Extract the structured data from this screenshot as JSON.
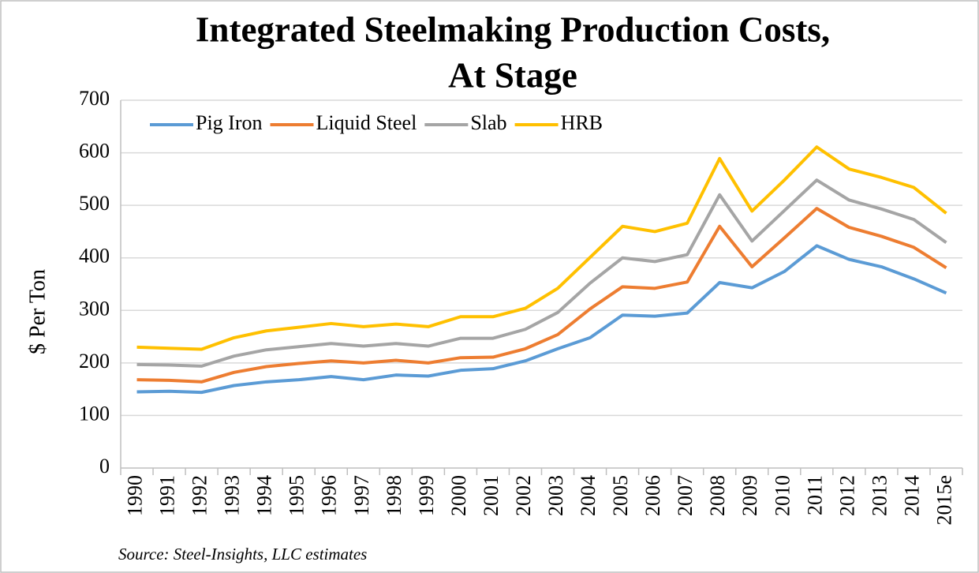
{
  "chart_data": {
    "type": "line",
    "title_lines": [
      "Integrated Steelmaking Production Costs,",
      "At Stage"
    ],
    "y_label": "$ Per Ton",
    "source": "Source: Steel-Insights, LLC estimates",
    "categories": [
      "1990",
      "1991",
      "1992",
      "1993",
      "1994",
      "1995",
      "1996",
      "1997",
      "1998",
      "1999",
      "2000",
      "2001",
      "2002",
      "2003",
      "2004",
      "2005",
      "2006",
      "2007",
      "2008",
      "2009",
      "2010",
      "2011",
      "2012",
      "2013",
      "2014",
      "2015e"
    ],
    "series": [
      {
        "name": "Pig Iron",
        "color": "#5b9bd5",
        "values": [
          145,
          146,
          144,
          157,
          164,
          168,
          174,
          168,
          177,
          175,
          186,
          189,
          204,
          227,
          248,
          291,
          289,
          295,
          353,
          343,
          374,
          423,
          397,
          383,
          360,
          333
        ]
      },
      {
        "name": "Liquid Steel",
        "color": "#ed7d31",
        "values": [
          168,
          167,
          164,
          182,
          193,
          199,
          204,
          200,
          205,
          200,
          210,
          211,
          227,
          254,
          303,
          345,
          342,
          354,
          460,
          383,
          438,
          494,
          458,
          441,
          420,
          381
        ]
      },
      {
        "name": "Slab",
        "color": "#a5a5a5",
        "values": [
          197,
          196,
          194,
          213,
          225,
          231,
          237,
          232,
          237,
          232,
          247,
          247,
          264,
          296,
          352,
          400,
          393,
          406,
          520,
          432,
          490,
          548,
          510,
          493,
          473,
          429
        ]
      },
      {
        "name": "HRB",
        "color": "#ffc000",
        "values": [
          230,
          228,
          226,
          248,
          261,
          268,
          275,
          269,
          274,
          269,
          288,
          288,
          304,
          342,
          401,
          460,
          450,
          466,
          589,
          489,
          548,
          611,
          569,
          553,
          534,
          485
        ]
      }
    ],
    "ylim": [
      0,
      700
    ],
    "yticks": [
      0,
      100,
      200,
      300,
      400,
      500,
      600,
      700
    ],
    "grid": true,
    "legend": "top-left"
  }
}
